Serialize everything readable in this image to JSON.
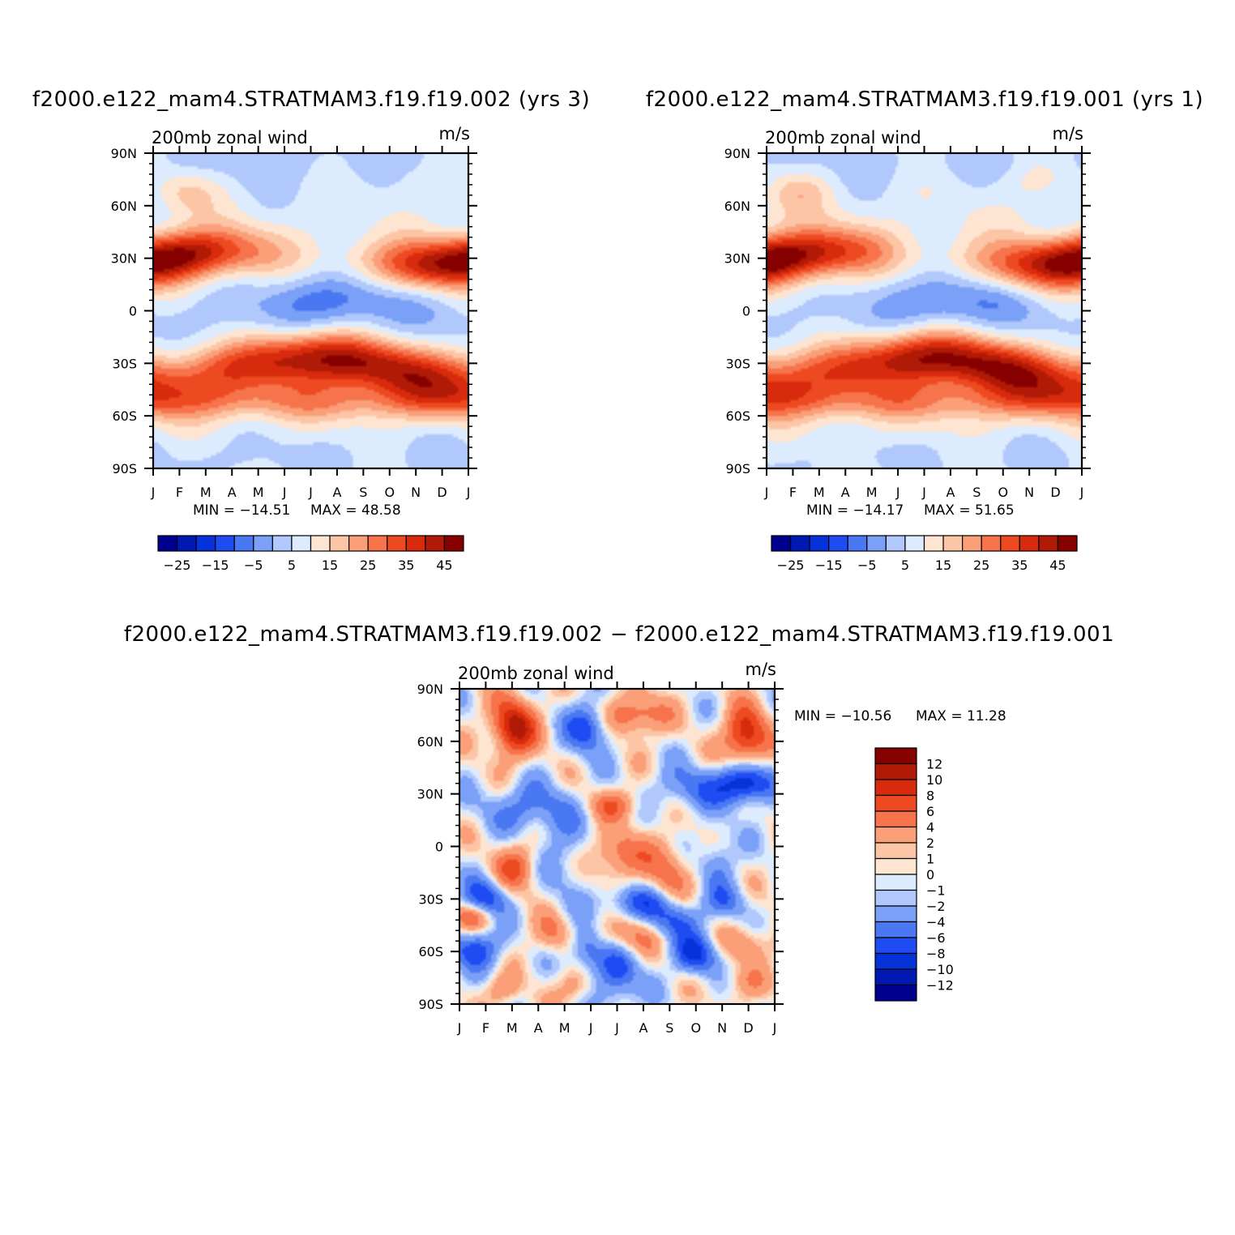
{
  "figure": {
    "bottom_title": "f2000.e122_mam4.STRATMAM3.f19.f19.002 − f2000.e122_mam4.STRATMAM3.f19.f19.001"
  },
  "chart_data": [
    {
      "type": "heatmap",
      "title": "f2000.e122_mam4.STRATMAM3.f19.f19.002 (yrs 3)",
      "left_label": "200mb zonal wind",
      "right_label": "m/s",
      "x_tick_labels": [
        "J",
        "F",
        "M",
        "A",
        "M",
        "J",
        "J",
        "A",
        "S",
        "O",
        "N",
        "D",
        "J"
      ],
      "y_tick_labels": [
        "90N",
        "60N",
        "30N",
        "0",
        "30S",
        "60S",
        "90S"
      ],
      "y_range": [
        -90,
        90
      ],
      "min_label": "MIN = −14.51",
      "max_label": "MAX =   48.58",
      "min": -14.51,
      "max": 48.58,
      "colorbar_labels": [
        "−25",
        "−15",
        "−5",
        "5",
        "15",
        "25",
        "35",
        "45"
      ],
      "colorbar_orientation": "horizontal"
    },
    {
      "type": "heatmap",
      "title": "f2000.e122_mam4.STRATMAM3.f19.f19.001 (yrs 1)",
      "left_label": "200mb zonal wind",
      "right_label": "m/s",
      "x_tick_labels": [
        "J",
        "F",
        "M",
        "A",
        "M",
        "J",
        "J",
        "A",
        "S",
        "O",
        "N",
        "D",
        "J"
      ],
      "y_tick_labels": [
        "90N",
        "60N",
        "30N",
        "0",
        "30S",
        "60S",
        "90S"
      ],
      "y_range": [
        -90,
        90
      ],
      "min_label": "MIN = −14.17",
      "max_label": "MAX =   51.65",
      "min": -14.17,
      "max": 51.65,
      "colorbar_labels": [
        "−25",
        "−15",
        "−5",
        "5",
        "15",
        "25",
        "35",
        "45"
      ],
      "colorbar_orientation": "horizontal"
    },
    {
      "type": "heatmap",
      "title": "",
      "left_label": "200mb zonal wind",
      "right_label": "m/s",
      "x_tick_labels": [
        "J",
        "F",
        "M",
        "A",
        "M",
        "J",
        "J",
        "A",
        "S",
        "O",
        "N",
        "D",
        "J"
      ],
      "y_tick_labels": [
        "90N",
        "60N",
        "30N",
        "0",
        "30S",
        "60S",
        "90S"
      ],
      "y_range": [
        -90,
        90
      ],
      "min_label": "MIN = −10.56",
      "max_label": "MAX =   11.28",
      "min": -10.56,
      "max": 11.28,
      "colorbar_labels": [
        "12",
        "10",
        "8",
        "6",
        "4",
        "2",
        "1",
        "0",
        "−1",
        "−2",
        "−4",
        "−6",
        "−8",
        "−10",
        "−12"
      ],
      "colorbar_orientation": "vertical"
    }
  ],
  "colors": {
    "main_scale": [
      "#00008f",
      "#0019b3",
      "#0533d9",
      "#1f4cf2",
      "#4a77f2",
      "#7aa0f7",
      "#b0c8fb",
      "#dcebfe",
      "#fee5d2",
      "#fcc5a6",
      "#fa9f78",
      "#f6734b",
      "#ee4a22",
      "#d82a0c",
      "#b01a06",
      "#860000"
    ],
    "diff_scale": [
      "#00008f",
      "#0019b3",
      "#0533d9",
      "#1f4cf2",
      "#4a77f2",
      "#7aa0f7",
      "#b0c8fb",
      "#dcebfe",
      "#fee5d2",
      "#fcc5a6",
      "#fa9f78",
      "#f6734b",
      "#ee4a22",
      "#d82a0c",
      "#b01a06",
      "#860000"
    ]
  }
}
